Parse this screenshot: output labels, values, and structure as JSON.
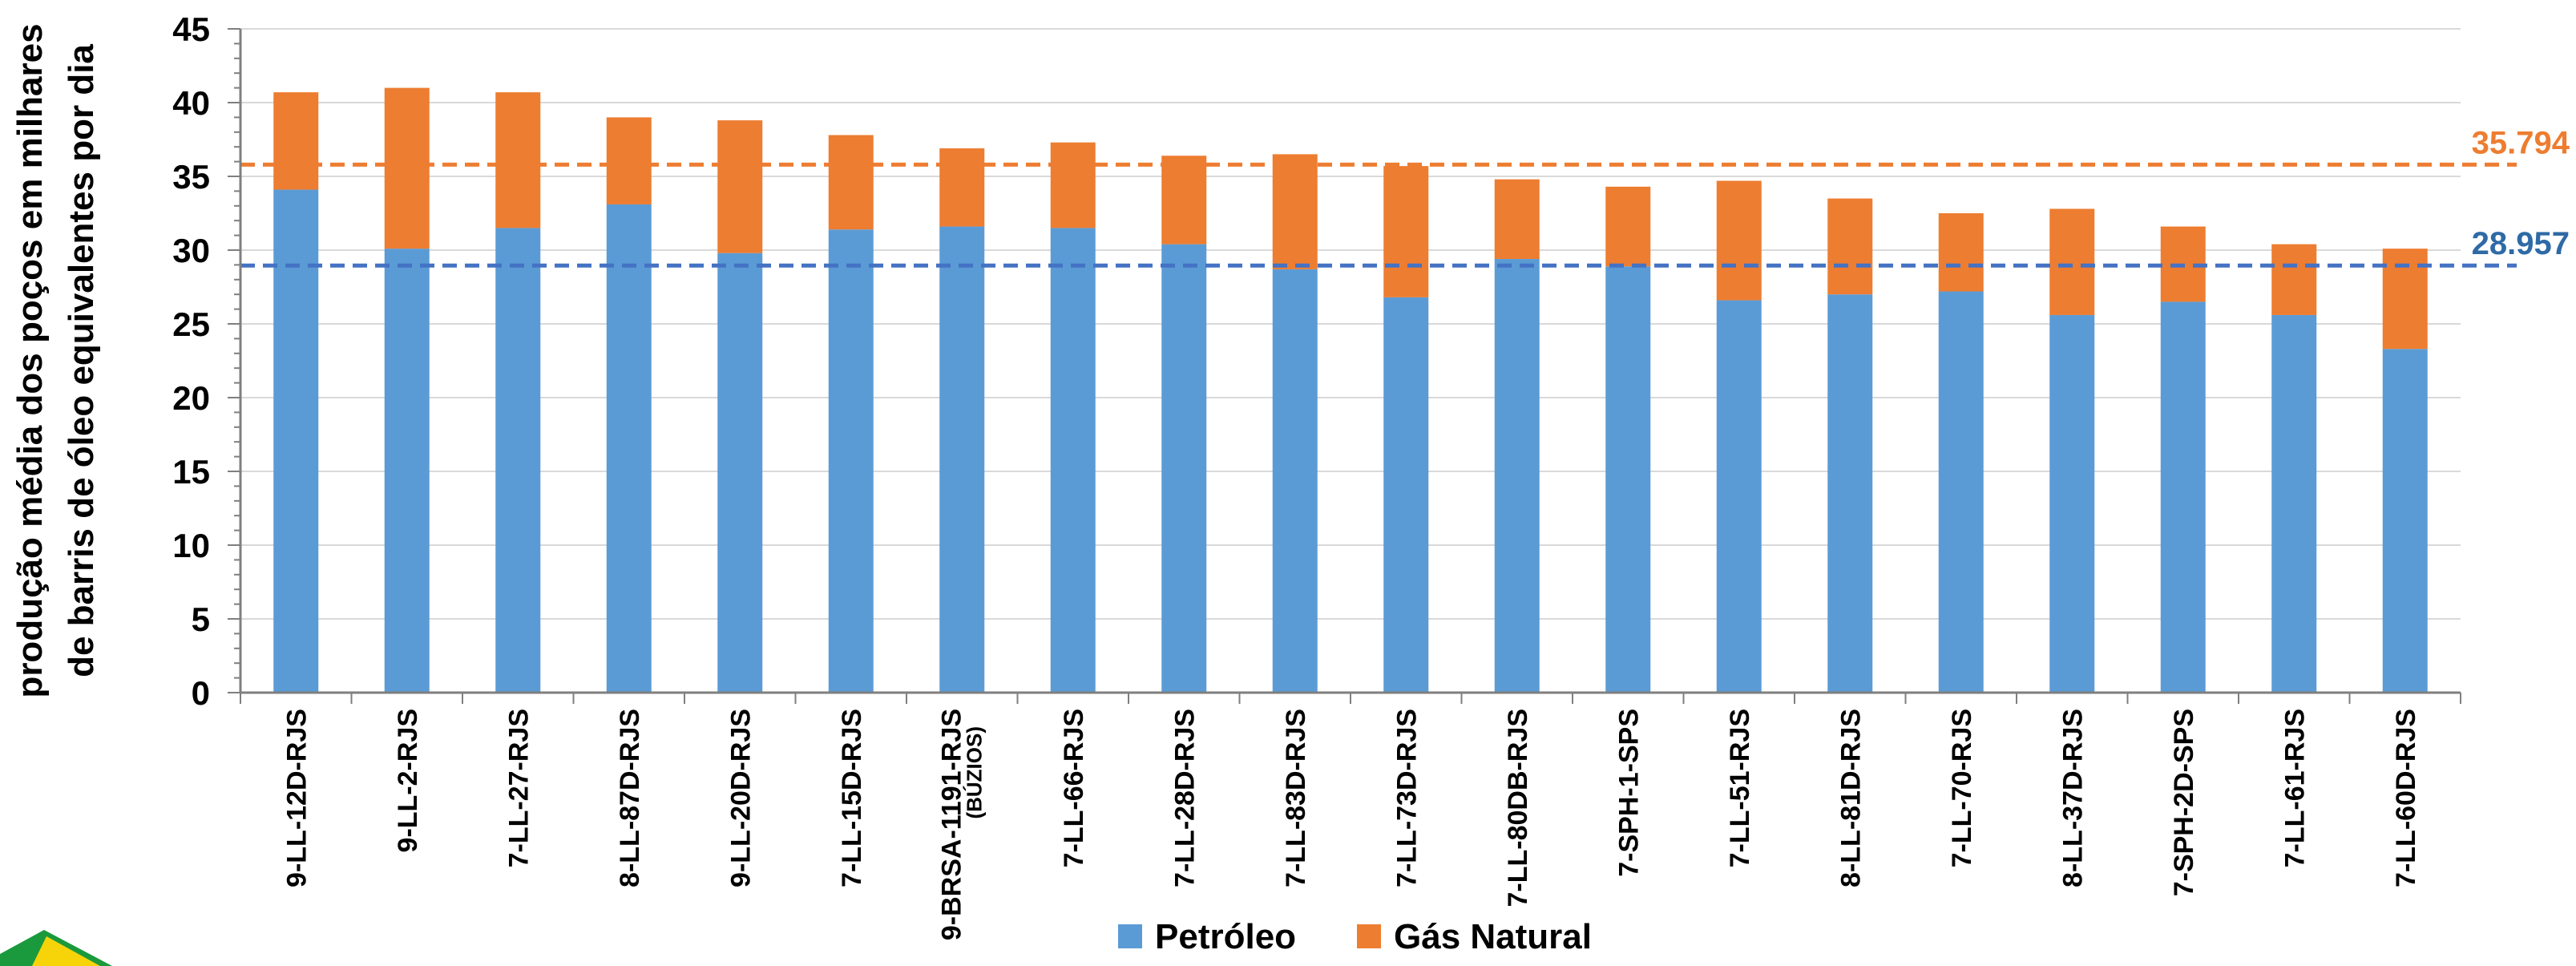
{
  "chart_data": {
    "type": "bar",
    "stacked": true,
    "ylabel": "produção média dos poços  em milhares de barris de óleo equivalentes por dia",
    "ylabel_lines": [
      "produção média dos poços  em milhares",
      "de barris de óleo equivalentes por dia"
    ],
    "ylim": [
      0,
      45
    ],
    "yticks": [
      0,
      5,
      10,
      15,
      20,
      25,
      30,
      35,
      40,
      45
    ],
    "grid": true,
    "legend_position": "bottom",
    "categories": [
      "9-LL-12D-RJS",
      "9-LL-2-RJS",
      "7-LL-27-RJS",
      "8-LL-87D-RJS",
      "9-LL-20D-RJS",
      "7-LL-15D-RJS",
      "9-BRSA-1191-RJS (BÚZIOS)",
      "7-LL-66-RJS",
      "7-LL-28D-RJS",
      "7-LL-83D-RJS",
      "7-LL-73D-RJS",
      "7-LL-80DB-RJS",
      "7-SPH-1-SPS",
      "7-LL-51-RJS",
      "8-LL-81D-RJS",
      "7-LL-70-RJS",
      "8-LL-37D-RJS",
      "7-SPH-2D-SPS",
      "7-LL-61-RJS",
      "7-LL-60D-RJS"
    ],
    "series": [
      {
        "name": "Petróleo",
        "color": "#5b9bd5",
        "values": [
          34.1,
          30.1,
          31.5,
          33.1,
          29.8,
          31.4,
          31.6,
          31.5,
          30.4,
          28.7,
          26.8,
          29.4,
          28.9,
          26.6,
          27.0,
          27.2,
          25.6,
          26.5,
          25.6,
          23.3
        ]
      },
      {
        "name": "Gás Natural",
        "color": "#ed7d31",
        "values": [
          6.6,
          10.9,
          9.2,
          5.9,
          9.0,
          6.4,
          5.3,
          5.8,
          6.0,
          7.8,
          8.9,
          5.4,
          5.4,
          8.1,
          6.5,
          5.3,
          7.2,
          5.1,
          4.8,
          6.8
        ]
      }
    ],
    "reference_lines": [
      {
        "value": 35.794,
        "label": "35.794",
        "color": "#ed7d31"
      },
      {
        "value": 28.957,
        "label": "28.957",
        "color": "#4472c4",
        "label_color": "#2e6aa6"
      }
    ]
  },
  "colors": {
    "axis": "#7f7f7f",
    "grid": "#d9d9d9",
    "text": "#000000"
  },
  "logo": {
    "icon": "flag-logo-icon"
  }
}
